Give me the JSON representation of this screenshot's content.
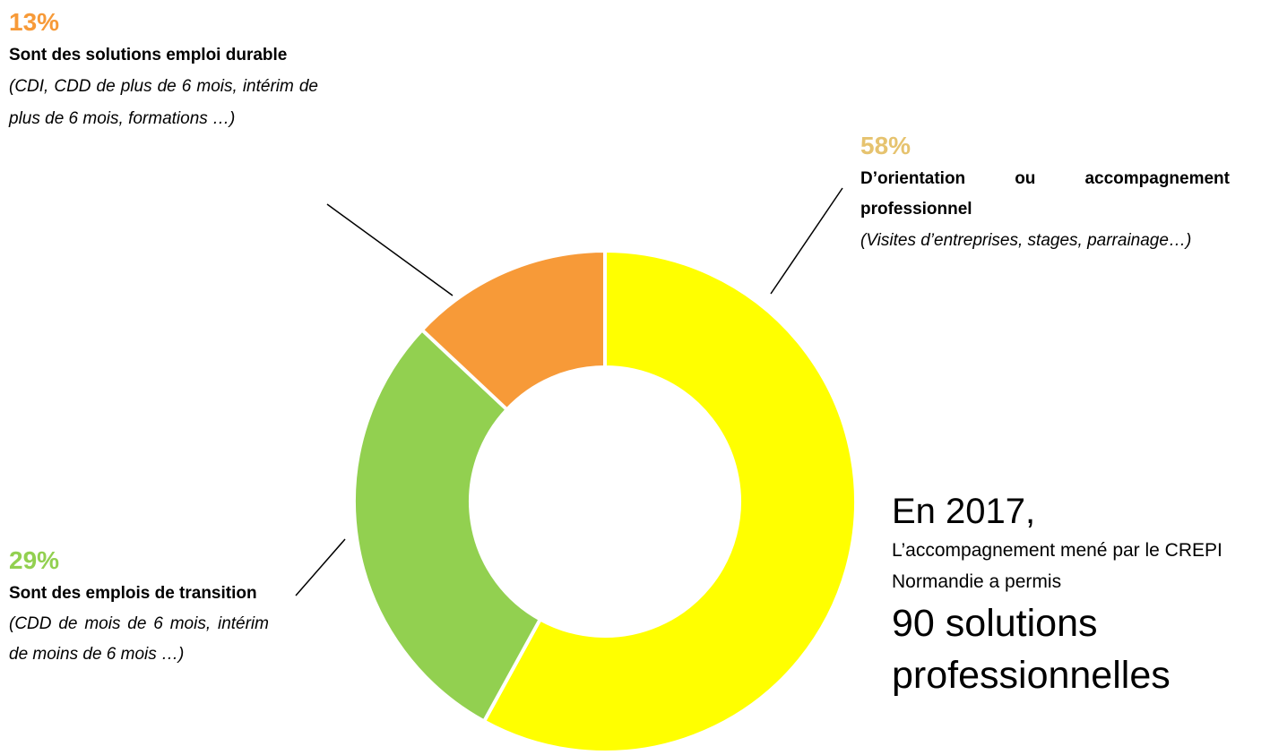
{
  "chart_data": {
    "type": "donut",
    "categories": [
      "D’orientation ou accompagnement professionnel",
      "Sont des emplois de transition",
      "Sont des solutions emploi durable"
    ],
    "descriptions": [
      "(Visites d’entreprises, stages, parrainage…)",
      "(CDD de mois de 6 mois, intérim de moins de 6 mois …)",
      "(CDI, CDD de plus de 6 mois, intérim de plus de 6 mois, formations …)"
    ],
    "values": [
      58,
      29,
      13
    ],
    "value_labels": [
      "58%",
      "29%",
      "13%"
    ],
    "colors": [
      "#ffff00",
      "#92d050",
      "#f79a38"
    ],
    "annotations": [
      "En 2017,",
      "L’accompagnement mené par le CREPI Normandie a permis",
      "90 solutions professionnelles"
    ]
  }
}
